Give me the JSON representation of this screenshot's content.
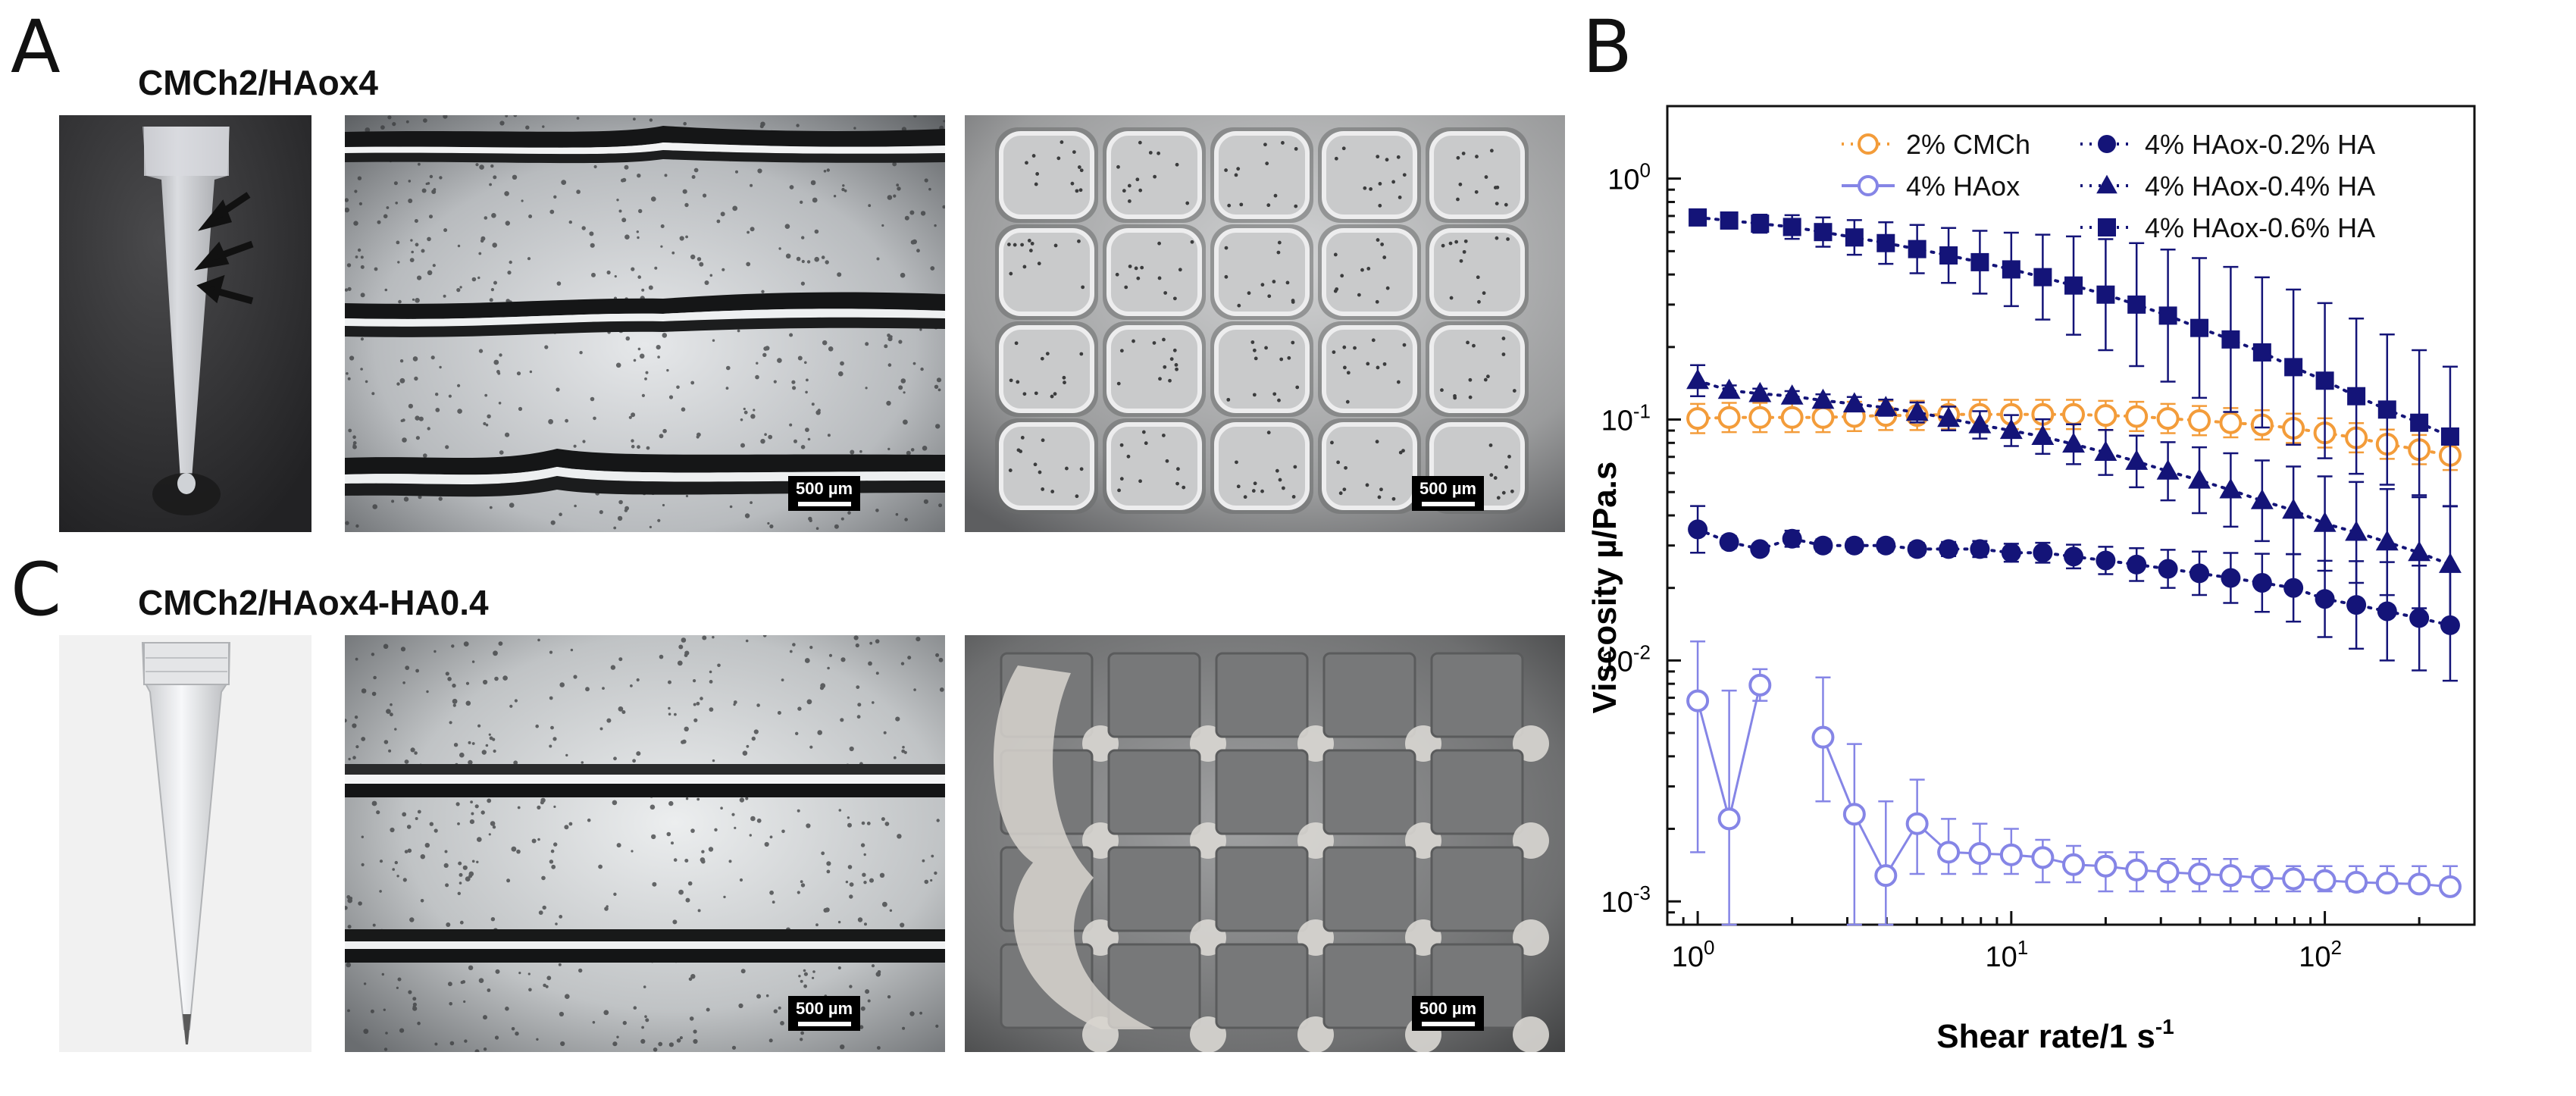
{
  "panels": {
    "A": {
      "letter": "A",
      "title": "CMCh2/HAox4",
      "scalebar_1": "500 µm",
      "scalebar_2": "500 µm"
    },
    "C": {
      "letter": "C",
      "title": "CMCh2/HAox4-HA0.4",
      "scalebar_1": "500 µm",
      "scalebar_2": "500 µm"
    },
    "B": {
      "letter": "B"
    }
  },
  "chart_data": {
    "type": "scatter",
    "xlabel": "Shear rate/1 s",
    "xlabel_sup": "-1",
    "ylabel": "Viscosity µ/Pa.s",
    "xscale": "log",
    "yscale": "log",
    "xlim": [
      0.8,
      300
    ],
    "ylim": [
      0.0008,
      2
    ],
    "x_ticks": [
      {
        "base": "10",
        "exp": "0"
      },
      {
        "base": "10",
        "exp": "1"
      },
      {
        "base": "10",
        "exp": "2"
      }
    ],
    "y_ticks": [
      {
        "base": "10",
        "exp": "-3"
      },
      {
        "base": "10",
        "exp": "-2"
      },
      {
        "base": "10",
        "exp": "-1"
      },
      {
        "base": "10",
        "exp": "0"
      }
    ],
    "legend_position": "top-right",
    "series": [
      {
        "name": "2% CMCh",
        "color": "#f39c3a",
        "marker": "open-circle",
        "line": "dotted",
        "x": [
          1,
          1.26,
          1.58,
          2,
          2.51,
          3.16,
          3.98,
          5.01,
          6.31,
          7.94,
          10,
          12.6,
          15.8,
          20,
          25.1,
          31.6,
          39.8,
          50.1,
          63.1,
          79.4,
          100,
          126,
          158,
          200,
          251
        ],
        "y": [
          0.101,
          0.102,
          0.102,
          0.102,
          0.102,
          0.103,
          0.104,
          0.104,
          0.105,
          0.105,
          0.105,
          0.105,
          0.105,
          0.104,
          0.103,
          0.101,
          0.099,
          0.097,
          0.095,
          0.092,
          0.088,
          0.084,
          0.079,
          0.075,
          0.071
        ],
        "err_factor": 1.15
      },
      {
        "name": "4% HAox",
        "color": "#8585e6",
        "marker": "open-circle",
        "line": "solid",
        "segments": [
          {
            "x": [
              1,
              1.26,
              1.58
            ],
            "y": [
              0.0068,
              0.0022,
              0.0079
            ]
          },
          {
            "x": [
              2.51,
              3.16,
              3.98,
              5.01,
              6.31,
              7.94,
              10,
              12.6,
              15.8,
              20,
              25.1,
              31.6,
              39.8,
              50.1,
              63.1,
              79.4,
              100,
              126,
              158,
              200,
              251
            ],
            "y": [
              0.0048,
              0.0023,
              0.00128,
              0.0021,
              0.0016,
              0.00158,
              0.00156,
              0.00152,
              0.00142,
              0.0014,
              0.00135,
              0.00132,
              0.0013,
              0.00128,
              0.00125,
              0.00124,
              0.00122,
              0.0012,
              0.00119,
              0.00118,
              0.00115
            ]
          }
        ],
        "err_low": [
          0.0016,
          0.0008,
          0.0068,
          0.0026,
          0.0008,
          0.0008,
          0.0013,
          0.0013,
          0.0013,
          0.0013,
          0.0012,
          0.0012,
          0.0011,
          0.0011,
          0.0011,
          0.0011,
          0.0011,
          0.0011,
          0.0011,
          0.0011,
          0.0011,
          0.0011,
          0.0011,
          0.0011
        ],
        "err_high": [
          0.012,
          0.0075,
          0.0092,
          0.0085,
          0.0045,
          0.0026,
          0.0032,
          0.0022,
          0.0021,
          0.002,
          0.0018,
          0.0017,
          0.0016,
          0.0016,
          0.0015,
          0.0015,
          0.0015,
          0.0014,
          0.0014,
          0.0014,
          0.0014,
          0.0014,
          0.0014,
          0.0014
        ]
      },
      {
        "name": "4% HAox-0.2% HA",
        "color": "#141478",
        "marker": "filled-circle",
        "line": "dotted",
        "x": [
          1,
          1.26,
          1.58,
          2,
          2.51,
          3.16,
          3.98,
          5.01,
          6.31,
          7.94,
          10,
          12.6,
          15.8,
          20,
          25.1,
          31.6,
          39.8,
          50.1,
          63.1,
          79.4,
          100,
          126,
          158,
          200,
          251
        ],
        "y": [
          0.035,
          0.031,
          0.029,
          0.032,
          0.03,
          0.03,
          0.03,
          0.029,
          0.029,
          0.029,
          0.028,
          0.028,
          0.027,
          0.026,
          0.025,
          0.024,
          0.023,
          0.022,
          0.021,
          0.02,
          0.018,
          0.017,
          0.016,
          0.015,
          0.014
        ],
        "err_factor_series": [
          1.25,
          1.06,
          1.05,
          1.08,
          1.06,
          1.06,
          1.06,
          1.06,
          1.07,
          1.08,
          1.09,
          1.1,
          1.12,
          1.14,
          1.17,
          1.2,
          1.23,
          1.27,
          1.32,
          1.38,
          1.44,
          1.52,
          1.6,
          1.65,
          1.7
        ]
      },
      {
        "name": "4% HAox-0.4% HA",
        "color": "#141478",
        "marker": "filled-triangle",
        "line": "dotted",
        "x": [
          1,
          1.26,
          1.58,
          2,
          2.51,
          3.16,
          3.98,
          5.01,
          6.31,
          7.94,
          10,
          12.6,
          15.8,
          20,
          25.1,
          31.6,
          39.8,
          50.1,
          63.1,
          79.4,
          100,
          126,
          158,
          200,
          251
        ],
        "y": [
          0.145,
          0.132,
          0.128,
          0.125,
          0.12,
          0.116,
          0.112,
          0.107,
          0.101,
          0.095,
          0.09,
          0.085,
          0.079,
          0.073,
          0.067,
          0.061,
          0.056,
          0.051,
          0.046,
          0.042,
          0.037,
          0.034,
          0.031,
          0.028,
          0.025
        ],
        "err_factor_series": [
          1.16,
          1.05,
          1.05,
          1.05,
          1.06,
          1.07,
          1.08,
          1.1,
          1.12,
          1.14,
          1.16,
          1.18,
          1.21,
          1.24,
          1.28,
          1.32,
          1.37,
          1.42,
          1.47,
          1.52,
          1.57,
          1.62,
          1.66,
          1.7,
          1.75
        ]
      },
      {
        "name": "4% HAox-0.6% HA",
        "color": "#141478",
        "marker": "filled-square",
        "line": "dotted",
        "x": [
          1,
          1.26,
          1.58,
          2,
          2.51,
          3.16,
          3.98,
          5.01,
          6.31,
          7.94,
          10,
          12.6,
          15.8,
          20,
          25.1,
          31.6,
          39.8,
          50.1,
          63.1,
          79.4,
          100,
          126,
          158,
          200,
          251
        ],
        "y": [
          0.69,
          0.67,
          0.65,
          0.63,
          0.6,
          0.57,
          0.54,
          0.51,
          0.48,
          0.45,
          0.42,
          0.39,
          0.36,
          0.33,
          0.3,
          0.27,
          0.24,
          0.215,
          0.19,
          0.165,
          0.145,
          0.125,
          0.11,
          0.097,
          0.085
        ],
        "err_factor_series": [
          1.05,
          1.07,
          1.09,
          1.12,
          1.15,
          1.18,
          1.22,
          1.26,
          1.3,
          1.35,
          1.42,
          1.5,
          1.6,
          1.7,
          1.8,
          1.88,
          1.95,
          2.0,
          2.05,
          2.1,
          2.1,
          2.1,
          2.05,
          2.0,
          1.95
        ]
      }
    ]
  }
}
